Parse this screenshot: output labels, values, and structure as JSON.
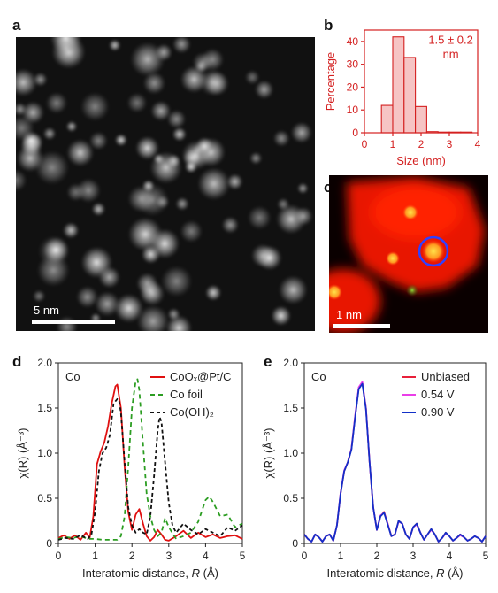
{
  "panel_labels": {
    "a": "a",
    "b": "b",
    "c": "c",
    "d": "d",
    "e": "e"
  },
  "panel_a": {
    "scale_bar": "5 nm"
  },
  "panel_c": {
    "scale_bar": "1 nm"
  },
  "chart_data": [
    {
      "panel": "b",
      "type": "bar",
      "xlabel": "Size (nm)",
      "ylabel": "Percentage",
      "xlim": [
        0,
        4
      ],
      "ylim": [
        0,
        45
      ],
      "xticks": [
        "0",
        "1",
        "2",
        "3",
        "4"
      ],
      "yticks": [
        "0",
        "10",
        "20",
        "30",
        "40"
      ],
      "bin_width": 0.4,
      "bin_centers": [
        0.8,
        1.2,
        1.6,
        2.0,
        2.4,
        2.8,
        3.2,
        3.6
      ],
      "values": [
        12,
        42,
        33,
        11.5,
        0.5,
        0.3,
        0.3,
        0.3
      ],
      "annotation_line1": "1.5 ± 0.2",
      "annotation_line2": "nm",
      "color": "#d42020",
      "fill": "#f6c4c4"
    },
    {
      "panel": "d",
      "type": "line",
      "element": "Co",
      "xlabel_prefix": "Interatomic distance, ",
      "xlabel_var": "R",
      "xlabel_suffix": " (Å)",
      "ylabel": "χ(R) (Å⁻³)",
      "xlim": [
        0,
        5
      ],
      "ylim": [
        0,
        2.0
      ],
      "xticks": [
        "0",
        "1",
        "2",
        "3",
        "4",
        "5"
      ],
      "yticks": [
        "0",
        "0.5",
        "1.0",
        "1.5",
        "2.0"
      ],
      "series": [
        {
          "name": "CoOₓ@Pt/C",
          "color": "#e01010",
          "dash": "",
          "x": [
            0,
            0.15,
            0.3,
            0.45,
            0.6,
            0.75,
            0.85,
            0.95,
            1.05,
            1.15,
            1.25,
            1.35,
            1.45,
            1.55,
            1.6,
            1.7,
            1.8,
            1.9,
            2.0,
            2.1,
            2.2,
            2.3,
            2.4,
            2.5,
            2.6,
            2.7,
            2.8,
            2.9,
            3.0,
            3.2,
            3.4,
            3.6,
            3.8,
            4.0,
            4.2,
            4.4,
            4.6,
            4.8,
            5.0
          ],
          "y": [
            0.06,
            0.09,
            0.05,
            0.09,
            0.04,
            0.12,
            0.06,
            0.3,
            0.88,
            1.02,
            1.12,
            1.3,
            1.55,
            1.74,
            1.76,
            1.5,
            0.85,
            0.35,
            0.15,
            0.32,
            0.38,
            0.22,
            0.08,
            0.03,
            0.07,
            0.15,
            0.1,
            0.04,
            0.03,
            0.08,
            0.14,
            0.06,
            0.12,
            0.07,
            0.1,
            0.06,
            0.08,
            0.09,
            0.05
          ]
        },
        {
          "name": "Co foil",
          "color": "#2c9d22",
          "dash": "5,4",
          "x": [
            0,
            0.2,
            0.4,
            0.6,
            0.8,
            1.0,
            1.2,
            1.4,
            1.6,
            1.7,
            1.8,
            1.9,
            2.0,
            2.1,
            2.15,
            2.2,
            2.3,
            2.4,
            2.5,
            2.6,
            2.7,
            2.8,
            2.9,
            3.0,
            3.2,
            3.4,
            3.6,
            3.8,
            4.0,
            4.1,
            4.2,
            4.4,
            4.6,
            4.8,
            5.0
          ],
          "y": [
            0.05,
            0.07,
            0.06,
            0.08,
            0.05,
            0.05,
            0.04,
            0.04,
            0.04,
            0.08,
            0.3,
            0.85,
            1.5,
            1.8,
            1.82,
            1.7,
            1.1,
            0.55,
            0.3,
            0.15,
            0.08,
            0.12,
            0.28,
            0.18,
            0.05,
            0.08,
            0.12,
            0.24,
            0.48,
            0.52,
            0.46,
            0.3,
            0.32,
            0.18,
            0.22
          ]
        },
        {
          "name": "Co(OH)₂",
          "color": "#111111",
          "dash": "4,3",
          "x": [
            0,
            0.2,
            0.4,
            0.6,
            0.8,
            0.9,
            1.0,
            1.1,
            1.2,
            1.3,
            1.4,
            1.5,
            1.6,
            1.65,
            1.7,
            1.8,
            1.9,
            2.0,
            2.1,
            2.2,
            2.3,
            2.4,
            2.5,
            2.6,
            2.7,
            2.75,
            2.8,
            2.9,
            3.0,
            3.1,
            3.2,
            3.4,
            3.6,
            3.8,
            4.0,
            4.2,
            4.4,
            4.6,
            4.8,
            5.0
          ],
          "y": [
            0.04,
            0.06,
            0.05,
            0.09,
            0.05,
            0.1,
            0.35,
            0.8,
            1.0,
            1.06,
            1.2,
            1.55,
            1.6,
            1.58,
            1.45,
            0.9,
            0.4,
            0.2,
            0.12,
            0.16,
            0.12,
            0.1,
            0.3,
            0.75,
            1.25,
            1.4,
            1.35,
            0.9,
            0.45,
            0.2,
            0.12,
            0.22,
            0.15,
            0.1,
            0.16,
            0.12,
            0.08,
            0.18,
            0.14,
            0.2
          ]
        }
      ]
    },
    {
      "panel": "e",
      "type": "line",
      "element": "Co",
      "xlabel_prefix": "Interatomic distance, ",
      "xlabel_var": "R",
      "xlabel_suffix": " (Å)",
      "ylabel": "χ(R) (Å⁻³)",
      "xlim": [
        0,
        5
      ],
      "ylim": [
        0,
        2.0
      ],
      "xticks": [
        "0",
        "1",
        "2",
        "3",
        "4",
        "5"
      ],
      "yticks": [
        "0",
        "0.5",
        "1.0",
        "1.5",
        "2.0"
      ],
      "series": [
        {
          "name": "Unbiased",
          "color": "#e8203a",
          "x": [
            0,
            0.1,
            0.2,
            0.3,
            0.4,
            0.5,
            0.6,
            0.7,
            0.8,
            0.9,
            1.0,
            1.1,
            1.2,
            1.3,
            1.4,
            1.5,
            1.6,
            1.7,
            1.8,
            1.9,
            2.0,
            2.1,
            2.2,
            2.3,
            2.4,
            2.5,
            2.6,
            2.7,
            2.8,
            2.9,
            3.0,
            3.1,
            3.2,
            3.3,
            3.4,
            3.5,
            3.6,
            3.7,
            3.8,
            3.9,
            4.0,
            4.1,
            4.2,
            4.3,
            4.4,
            4.5,
            4.6,
            4.7,
            4.8,
            4.9,
            5.0
          ],
          "y": [
            0.1,
            0.05,
            0.02,
            0.1,
            0.07,
            0.02,
            0.08,
            0.1,
            0.03,
            0.2,
            0.55,
            0.8,
            0.9,
            1.05,
            1.4,
            1.72,
            1.78,
            1.5,
            0.9,
            0.4,
            0.15,
            0.3,
            0.35,
            0.22,
            0.08,
            0.1,
            0.25,
            0.22,
            0.1,
            0.05,
            0.18,
            0.22,
            0.12,
            0.04,
            0.1,
            0.16,
            0.1,
            0.02,
            0.06,
            0.12,
            0.08,
            0.03,
            0.06,
            0.1,
            0.07,
            0.03,
            0.05,
            0.08,
            0.06,
            0.02,
            0.08
          ]
        },
        {
          "name": "0.54 V",
          "color": "#ea3ee8",
          "x": [
            0,
            0.1,
            0.2,
            0.3,
            0.4,
            0.5,
            0.6,
            0.7,
            0.8,
            0.9,
            1.0,
            1.1,
            1.2,
            1.3,
            1.4,
            1.5,
            1.6,
            1.7,
            1.8,
            1.9,
            2.0,
            2.1,
            2.2,
            2.3,
            2.4,
            2.5,
            2.6,
            2.7,
            2.8,
            2.9,
            3.0,
            3.1,
            3.2,
            3.3,
            3.4,
            3.5,
            3.6,
            3.7,
            3.8,
            3.9,
            4.0,
            4.1,
            4.2,
            4.3,
            4.4,
            4.5,
            4.6,
            4.7,
            4.8,
            4.9,
            5.0
          ],
          "y": [
            0.1,
            0.05,
            0.02,
            0.1,
            0.07,
            0.02,
            0.08,
            0.1,
            0.03,
            0.2,
            0.56,
            0.81,
            0.9,
            1.05,
            1.41,
            1.73,
            1.79,
            1.5,
            0.9,
            0.4,
            0.15,
            0.31,
            0.34,
            0.22,
            0.08,
            0.1,
            0.24,
            0.22,
            0.1,
            0.05,
            0.18,
            0.21,
            0.12,
            0.04,
            0.1,
            0.15,
            0.1,
            0.02,
            0.06,
            0.11,
            0.08,
            0.03,
            0.06,
            0.09,
            0.07,
            0.03,
            0.05,
            0.08,
            0.06,
            0.02,
            0.08
          ]
        },
        {
          "name": "0.90 V",
          "color": "#1230c8",
          "x": [
            0,
            0.1,
            0.2,
            0.3,
            0.4,
            0.5,
            0.6,
            0.7,
            0.8,
            0.9,
            1.0,
            1.1,
            1.2,
            1.3,
            1.4,
            1.5,
            1.6,
            1.7,
            1.8,
            1.9,
            2.0,
            2.1,
            2.2,
            2.3,
            2.4,
            2.5,
            2.6,
            2.7,
            2.8,
            2.9,
            3.0,
            3.1,
            3.2,
            3.3,
            3.4,
            3.5,
            3.6,
            3.7,
            3.8,
            3.9,
            4.0,
            4.1,
            4.2,
            4.3,
            4.4,
            4.5,
            4.6,
            4.7,
            4.8,
            4.9,
            5.0
          ],
          "y": [
            0.1,
            0.05,
            0.02,
            0.1,
            0.07,
            0.02,
            0.08,
            0.1,
            0.03,
            0.2,
            0.55,
            0.8,
            0.9,
            1.04,
            1.39,
            1.71,
            1.77,
            1.49,
            0.9,
            0.4,
            0.15,
            0.3,
            0.34,
            0.21,
            0.08,
            0.1,
            0.25,
            0.22,
            0.1,
            0.05,
            0.18,
            0.22,
            0.12,
            0.04,
            0.1,
            0.16,
            0.1,
            0.02,
            0.06,
            0.12,
            0.08,
            0.03,
            0.06,
            0.1,
            0.07,
            0.03,
            0.05,
            0.08,
            0.06,
            0.02,
            0.08
          ]
        }
      ]
    }
  ]
}
